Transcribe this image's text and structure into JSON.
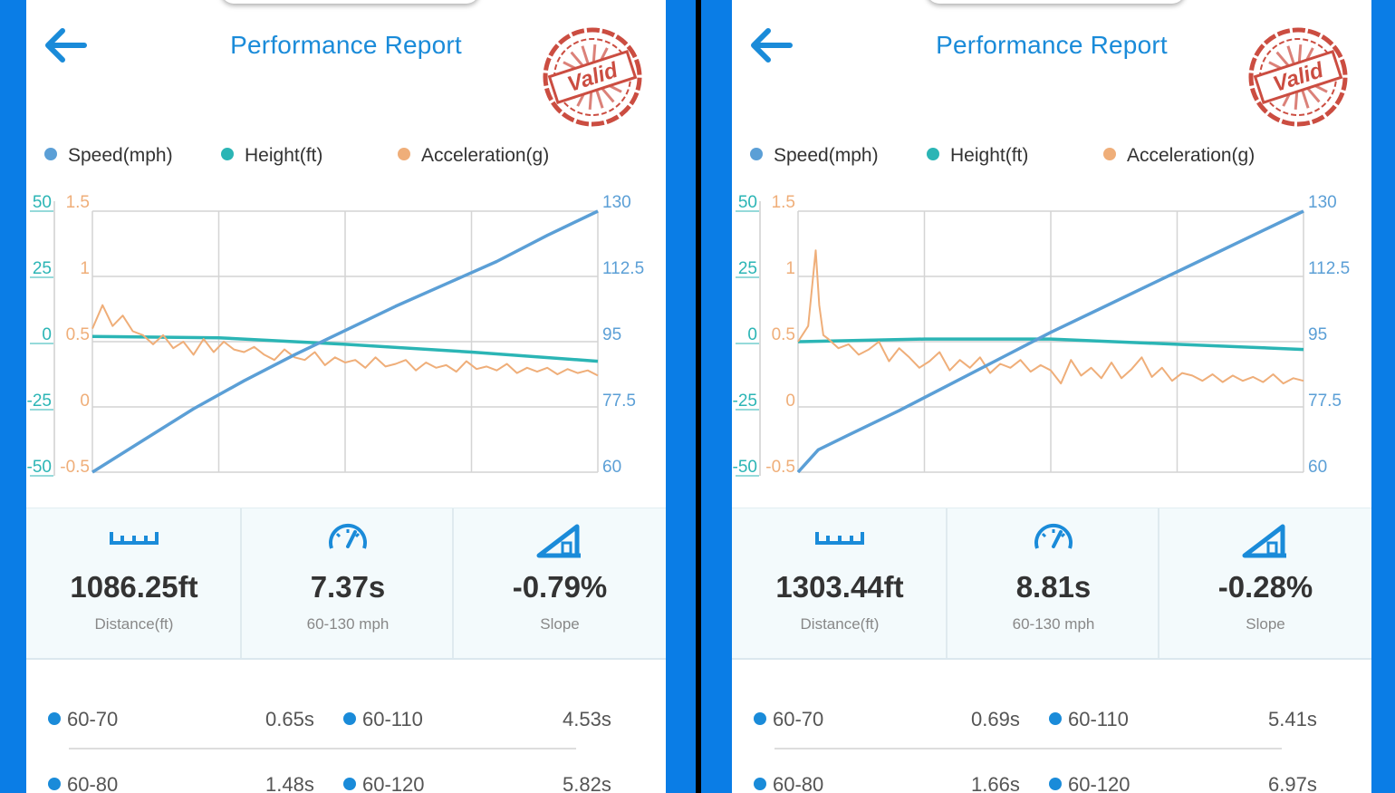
{
  "colors": {
    "accent": "#1a8bd9",
    "speed": "#5b9fd6",
    "height": "#2bb5b5",
    "acceleration": "#efae79",
    "stamp": "#c63a2d"
  },
  "panels": [
    {
      "back_icon": "arrow-left-icon",
      "title": "Performance Report",
      "stamp": "Valid",
      "legend": [
        "Speed(mph)",
        "Height(ft)",
        "Acceleration(g)"
      ],
      "chart_data": {
        "type": "line",
        "x_ticks": 4,
        "axes": {
          "left_height": {
            "ticks": [
              "50",
              "25",
              "0",
              "-25",
              "-50"
            ],
            "range": [
              -50,
              50
            ]
          },
          "left_accel": {
            "ticks": [
              "1.5",
              "1",
              "0.5",
              "0",
              "-0.5"
            ],
            "range": [
              -0.5,
              1.5
            ]
          },
          "right_speed": {
            "ticks": [
              "130",
              "112.5",
              "95",
              "77.5",
              "60"
            ],
            "range": [
              60,
              130
            ]
          }
        },
        "grid": true,
        "series": [
          {
            "name": "Speed(mph)",
            "axis": "right_speed",
            "x": [
              0,
              0.1,
              0.2,
              0.3,
              0.4,
              0.5,
              0.6,
              0.7,
              0.8,
              0.9,
              1.0
            ],
            "values": [
              60,
              68.5,
              77,
              84.5,
              91.5,
              98,
              104.5,
              110.5,
              116.5,
              123.5,
              130
            ]
          },
          {
            "name": "Height(ft)",
            "axis": "left_height",
            "x": [
              0,
              0.25,
              0.5,
              0.75,
              1.0
            ],
            "values": [
              2,
              1.5,
              -1,
              -4,
              -7.5
            ]
          },
          {
            "name": "Acceleration(g)",
            "axis": "left_accel",
            "x": [
              0,
              0.02,
              0.04,
              0.06,
              0.08,
              0.1,
              0.12,
              0.14,
              0.16,
              0.18,
              0.2,
              0.22,
              0.24,
              0.26,
              0.28,
              0.3,
              0.32,
              0.34,
              0.36,
              0.38,
              0.4,
              0.42,
              0.44,
              0.46,
              0.48,
              0.5,
              0.52,
              0.54,
              0.56,
              0.58,
              0.6,
              0.62,
              0.64,
              0.66,
              0.68,
              0.7,
              0.72,
              0.74,
              0.76,
              0.78,
              0.8,
              0.82,
              0.84,
              0.86,
              0.88,
              0.9,
              0.92,
              0.94,
              0.96,
              0.98,
              1.0
            ],
            "values": [
              0.6,
              0.78,
              0.62,
              0.7,
              0.58,
              0.55,
              0.48,
              0.55,
              0.45,
              0.5,
              0.4,
              0.52,
              0.42,
              0.5,
              0.44,
              0.42,
              0.46,
              0.4,
              0.36,
              0.44,
              0.38,
              0.36,
              0.42,
              0.32,
              0.38,
              0.34,
              0.36,
              0.3,
              0.38,
              0.31,
              0.33,
              0.36,
              0.28,
              0.34,
              0.3,
              0.32,
              0.27,
              0.35,
              0.29,
              0.31,
              0.28,
              0.33,
              0.26,
              0.3,
              0.27,
              0.3,
              0.25,
              0.29,
              0.26,
              0.28,
              0.24
            ]
          }
        ]
      },
      "stats": [
        {
          "icon": "ruler-icon",
          "value": "1086.25ft",
          "label": "Distance(ft)"
        },
        {
          "icon": "speedometer-icon",
          "value": "7.37s",
          "label": "60-130 mph"
        },
        {
          "icon": "slope-icon",
          "value": "-0.79%",
          "label": "Slope"
        }
      ],
      "splits": [
        {
          "left_range": "60-70",
          "left_time": "0.65s",
          "right_range": "60-110",
          "right_time": "4.53s"
        },
        {
          "left_range": "60-80",
          "left_time": "1.48s",
          "right_range": "60-120",
          "right_time": "5.82s"
        }
      ]
    },
    {
      "back_icon": "arrow-left-icon",
      "title": "Performance Report",
      "stamp": "Valid",
      "legend": [
        "Speed(mph)",
        "Height(ft)",
        "Acceleration(g)"
      ],
      "chart_data": {
        "type": "line",
        "x_ticks": 4,
        "axes": {
          "left_height": {
            "ticks": [
              "50",
              "25",
              "0",
              "-25",
              "-50"
            ],
            "range": [
              -50,
              50
            ]
          },
          "left_accel": {
            "ticks": [
              "1.5",
              "1",
              "0.5",
              "0",
              "-0.5"
            ],
            "range": [
              -0.5,
              1.5
            ]
          },
          "right_speed": {
            "ticks": [
              "130",
              "112.5",
              "95",
              "77.5",
              "60"
            ],
            "range": [
              60,
              130
            ]
          }
        },
        "grid": true,
        "series": [
          {
            "name": "Speed(mph)",
            "axis": "right_speed",
            "x": [
              0,
              0.04,
              0.1,
              0.2,
              0.3,
              0.4,
              0.5,
              0.6,
              0.7,
              0.8,
              0.9,
              1.0
            ],
            "values": [
              60,
              66,
              70,
              76.5,
              83.5,
              90.5,
              97.5,
              104,
              110.5,
              117,
              123.5,
              130
            ]
          },
          {
            "name": "Height(ft)",
            "axis": "left_height",
            "x": [
              0,
              0.25,
              0.5,
              0.75,
              1.0
            ],
            "values": [
              0,
              1,
              1,
              -1,
              -3
            ]
          },
          {
            "name": "Acceleration(g)",
            "axis": "left_accel",
            "x": [
              0,
              0.02,
              0.035,
              0.042,
              0.05,
              0.06,
              0.08,
              0.1,
              0.12,
              0.14,
              0.16,
              0.18,
              0.2,
              0.22,
              0.24,
              0.26,
              0.28,
              0.3,
              0.32,
              0.34,
              0.36,
              0.38,
              0.4,
              0.42,
              0.44,
              0.46,
              0.48,
              0.5,
              0.52,
              0.54,
              0.56,
              0.58,
              0.6,
              0.62,
              0.64,
              0.66,
              0.68,
              0.7,
              0.72,
              0.74,
              0.76,
              0.78,
              0.8,
              0.82,
              0.84,
              0.86,
              0.88,
              0.9,
              0.92,
              0.94,
              0.96,
              0.98,
              1.0
            ],
            "values": [
              0.5,
              0.62,
              1.2,
              0.78,
              0.55,
              0.52,
              0.45,
              0.48,
              0.4,
              0.44,
              0.5,
              0.35,
              0.45,
              0.38,
              0.3,
              0.35,
              0.42,
              0.28,
              0.36,
              0.3,
              0.38,
              0.26,
              0.33,
              0.3,
              0.36,
              0.27,
              0.32,
              0.28,
              0.18,
              0.36,
              0.24,
              0.3,
              0.22,
              0.34,
              0.22,
              0.29,
              0.38,
              0.23,
              0.3,
              0.2,
              0.26,
              0.24,
              0.2,
              0.25,
              0.19,
              0.24,
              0.2,
              0.23,
              0.19,
              0.25,
              0.18,
              0.22,
              0.2
            ]
          }
        ]
      },
      "stats": [
        {
          "icon": "ruler-icon",
          "value": "1303.44ft",
          "label": "Distance(ft)"
        },
        {
          "icon": "speedometer-icon",
          "value": "8.81s",
          "label": "60-130 mph"
        },
        {
          "icon": "slope-icon",
          "value": "-0.28%",
          "label": "Slope"
        }
      ],
      "splits": [
        {
          "left_range": "60-70",
          "left_time": "0.69s",
          "right_range": "60-110",
          "right_time": "5.41s"
        },
        {
          "left_range": "60-80",
          "left_time": "1.66s",
          "right_range": "60-120",
          "right_time": "6.97s"
        }
      ]
    }
  ]
}
